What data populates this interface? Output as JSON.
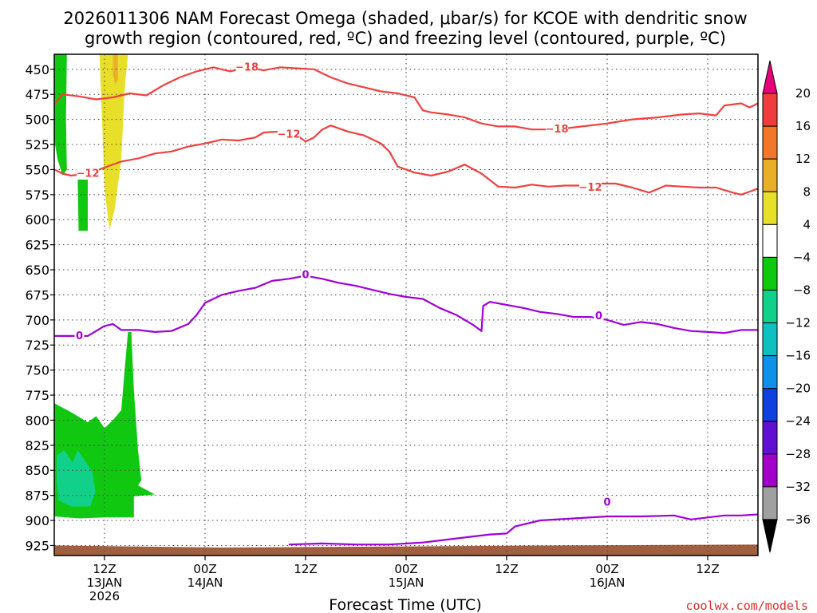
{
  "chart_data": {
    "type": "contour",
    "title_line1": "2026011306 NAM Forecast Omega (shaded, μbar/s) for KCOE with dendritic snow",
    "title_line2": "growth region (contoured, red, ºC) and freezing level (contoured, purple, ºC)",
    "xlabel": "Forecast Time (UTC)",
    "x_range_hours": [
      0,
      84
    ],
    "y_range_hpa": [
      435,
      935
    ],
    "y_ticks": [
      450,
      475,
      500,
      525,
      550,
      575,
      600,
      625,
      650,
      675,
      700,
      725,
      750,
      775,
      800,
      825,
      850,
      875,
      900,
      925
    ],
    "x_ticks": [
      {
        "hour": 6,
        "line1": "12Z",
        "line2": "13JAN",
        "line3": "2026"
      },
      {
        "hour": 18,
        "line1": "00Z",
        "line2": "14JAN",
        "line3": ""
      },
      {
        "hour": 30,
        "line1": "12Z",
        "line2": "",
        "line3": ""
      },
      {
        "hour": 42,
        "line1": "00Z",
        "line2": "15JAN",
        "line3": ""
      },
      {
        "hour": 54,
        "line1": "12Z",
        "line2": "",
        "line3": ""
      },
      {
        "hour": 66,
        "line1": "00Z",
        "line2": "16JAN",
        "line3": ""
      },
      {
        "hour": 78,
        "line1": "12Z",
        "line2": "",
        "line3": ""
      }
    ],
    "colorbar": {
      "labels": [
        "20",
        "16",
        "12",
        "8",
        "4",
        "−4",
        "−8",
        "−12",
        "−16",
        "−20",
        "−24",
        "−28",
        "−32",
        "−36"
      ],
      "colors": [
        "#e8007a",
        "#f03c3c",
        "#f07828",
        "#e8b028",
        "#e8e028",
        "#ffffff",
        "#10c810",
        "#10d08a",
        "#10c0c0",
        "#1090e8",
        "#1040e0",
        "#6010d0",
        "#a000c8",
        "#a0a0a0",
        "#000000"
      ]
    },
    "contours": [
      {
        "name": "minus-18-line",
        "color": "#f04040",
        "label": "−18",
        "label_at": [
          [
            23,
            448
          ],
          [
            60,
            510
          ]
        ],
        "points": [
          [
            0,
            485
          ],
          [
            1,
            475
          ],
          [
            3,
            477
          ],
          [
            5,
            480
          ],
          [
            7,
            478
          ],
          [
            9,
            474
          ],
          [
            11,
            476
          ],
          [
            13,
            466
          ],
          [
            15,
            458
          ],
          [
            17,
            452
          ],
          [
            19,
            448
          ],
          [
            21,
            452
          ],
          [
            23,
            448
          ],
          [
            25,
            451
          ],
          [
            27,
            448
          ],
          [
            29,
            449
          ],
          [
            31,
            450
          ],
          [
            33,
            458
          ],
          [
            35,
            464
          ],
          [
            37,
            468
          ],
          [
            39,
            472
          ],
          [
            41,
            474
          ],
          [
            43,
            478
          ],
          [
            44,
            491
          ],
          [
            45,
            493
          ],
          [
            47,
            495
          ],
          [
            49,
            498
          ],
          [
            51,
            504
          ],
          [
            53,
            507
          ],
          [
            55,
            507
          ],
          [
            57,
            510
          ],
          [
            60,
            510
          ],
          [
            63,
            507
          ],
          [
            66,
            504
          ],
          [
            69,
            500
          ],
          [
            72,
            498
          ],
          [
            75,
            495
          ],
          [
            77,
            494
          ],
          [
            79,
            496
          ],
          [
            80,
            486
          ],
          [
            82,
            484
          ],
          [
            83,
            488
          ],
          [
            84,
            484
          ]
        ]
      },
      {
        "name": "minus-12-line",
        "color": "#f04040",
        "label": "−12",
        "label_at": [
          [
            4,
            554
          ],
          [
            28,
            515
          ],
          [
            64,
            568
          ]
        ],
        "points": [
          [
            0,
            550
          ],
          [
            1,
            554
          ],
          [
            2,
            556
          ],
          [
            4,
            554
          ],
          [
            6,
            548
          ],
          [
            8,
            542
          ],
          [
            10,
            539
          ],
          [
            12,
            534
          ],
          [
            14,
            532
          ],
          [
            16,
            527
          ],
          [
            18,
            524
          ],
          [
            20,
            520
          ],
          [
            22,
            521
          ],
          [
            24,
            518
          ],
          [
            25,
            513
          ],
          [
            27,
            512
          ],
          [
            29,
            516
          ],
          [
            30,
            522
          ],
          [
            31,
            518
          ],
          [
            32,
            510
          ],
          [
            33,
            506
          ],
          [
            35,
            512
          ],
          [
            37,
            516
          ],
          [
            39,
            524
          ],
          [
            40,
            532
          ],
          [
            41,
            547
          ],
          [
            43,
            553
          ],
          [
            45,
            556
          ],
          [
            47,
            552
          ],
          [
            49,
            545
          ],
          [
            51,
            554
          ],
          [
            53,
            567
          ],
          [
            55,
            568
          ],
          [
            57,
            565
          ],
          [
            59,
            567
          ],
          [
            61,
            566
          ],
          [
            63,
            566
          ],
          [
            65,
            564
          ],
          [
            67,
            564
          ],
          [
            69,
            568
          ],
          [
            71,
            573
          ],
          [
            73,
            566
          ],
          [
            75,
            567
          ],
          [
            77,
            568
          ],
          [
            79,
            568
          ],
          [
            81,
            573
          ],
          [
            82,
            575
          ],
          [
            83,
            572
          ],
          [
            84,
            569
          ]
        ]
      },
      {
        "name": "zero-isotherm-line",
        "color": "#a000d8",
        "label": "0",
        "label_at": [
          [
            3,
            716
          ],
          [
            30,
            655
          ],
          [
            65,
            696
          ]
        ],
        "points": [
          [
            0,
            716
          ],
          [
            2,
            716
          ],
          [
            4,
            716
          ],
          [
            6,
            706
          ],
          [
            7,
            704
          ],
          [
            8,
            710
          ],
          [
            10,
            710
          ],
          [
            12,
            712
          ],
          [
            14,
            711
          ],
          [
            16,
            704
          ],
          [
            17,
            695
          ],
          [
            18,
            683
          ],
          [
            20,
            675
          ],
          [
            22,
            671
          ],
          [
            24,
            668
          ],
          [
            26,
            661
          ],
          [
            28,
            659
          ],
          [
            30,
            656
          ],
          [
            32,
            659
          ],
          [
            34,
            663
          ],
          [
            36,
            666
          ],
          [
            38,
            670
          ],
          [
            40,
            674
          ],
          [
            42,
            677
          ],
          [
            44,
            679
          ],
          [
            46,
            688
          ],
          [
            48,
            695
          ],
          [
            50,
            705
          ],
          [
            51,
            711
          ],
          [
            51.2,
            686
          ],
          [
            52,
            682
          ],
          [
            54,
            685
          ],
          [
            56,
            688
          ],
          [
            58,
            692
          ],
          [
            60,
            694
          ],
          [
            62,
            697
          ],
          [
            64,
            697
          ],
          [
            66,
            700
          ],
          [
            68,
            705
          ],
          [
            70,
            702
          ],
          [
            72,
            704
          ],
          [
            74,
            708
          ],
          [
            76,
            711
          ],
          [
            78,
            712
          ],
          [
            80,
            713
          ],
          [
            82,
            710
          ],
          [
            84,
            710
          ]
        ]
      },
      {
        "name": "lower-zero-isotherm-line",
        "color": "#a000d8",
        "label": "0",
        "label_at": [
          [
            66,
            882
          ]
        ],
        "points": [
          [
            28,
            924
          ],
          [
            32,
            923
          ],
          [
            36,
            924
          ],
          [
            40,
            924
          ],
          [
            44,
            922
          ],
          [
            48,
            918
          ],
          [
            52,
            914
          ],
          [
            54,
            913
          ],
          [
            55,
            906
          ],
          [
            58,
            900
          ],
          [
            62,
            898
          ],
          [
            66,
            896
          ],
          [
            70,
            896
          ],
          [
            74,
            895
          ],
          [
            76,
            899
          ],
          [
            78,
            897
          ],
          [
            80,
            895
          ],
          [
            82,
            895
          ],
          [
            84,
            894
          ]
        ]
      }
    ],
    "shaded_regions": [
      {
        "name": "green-column-left",
        "color": "#10c810",
        "points": [
          [
            0,
            435
          ],
          [
            1.5,
            435
          ],
          [
            1.4,
            500
          ],
          [
            1.5,
            550
          ],
          [
            1.0,
            556
          ],
          [
            0.4,
            540
          ],
          [
            0,
            520
          ]
        ]
      },
      {
        "name": "green-small-column",
        "color": "#10c810",
        "points": [
          [
            2.8,
            560
          ],
          [
            4.0,
            560
          ],
          [
            4.0,
            611
          ],
          [
            2.9,
            611
          ]
        ]
      },
      {
        "name": "yellow-column",
        "color": "#e8e028",
        "points": [
          [
            5.4,
            435
          ],
          [
            8.8,
            435
          ],
          [
            8.4,
            470
          ],
          [
            8.0,
            540
          ],
          [
            7.2,
            590
          ],
          [
            6.6,
            610
          ],
          [
            6.0,
            570
          ],
          [
            5.7,
            500
          ]
        ]
      },
      {
        "name": "orange-column",
        "color": "#e8b028",
        "points": [
          [
            7.0,
            435
          ],
          [
            7.6,
            435
          ],
          [
            7.6,
            460
          ],
          [
            7.3,
            465
          ],
          [
            7.0,
            455
          ]
        ]
      },
      {
        "name": "green-lower-region",
        "color": "#10c810",
        "points": [
          [
            0,
            783
          ],
          [
            2,
            792
          ],
          [
            4,
            802
          ],
          [
            5,
            796
          ],
          [
            6,
            808
          ],
          [
            7,
            800
          ],
          [
            8,
            790
          ],
          [
            8.5,
            740
          ],
          [
            8.8,
            712
          ],
          [
            9.2,
            712
          ],
          [
            9.5,
            770
          ],
          [
            10,
            830
          ],
          [
            10.4,
            860
          ],
          [
            10,
            865
          ],
          [
            12,
            874
          ],
          [
            9.5,
            876
          ],
          [
            9.5,
            897
          ],
          [
            6,
            897
          ],
          [
            3,
            898
          ],
          [
            0,
            896
          ]
        ]
      },
      {
        "name": "teal-lower-region",
        "color": "#10d08a",
        "points": [
          [
            0.3,
            835
          ],
          [
            1.2,
            830
          ],
          [
            2.2,
            842
          ],
          [
            2.8,
            830
          ],
          [
            4.6,
            852
          ],
          [
            4.9,
            872
          ],
          [
            4.3,
            886
          ],
          [
            2,
            886
          ],
          [
            0.5,
            880
          ],
          [
            0.3,
            860
          ]
        ]
      },
      {
        "name": "ground-strip",
        "color": "#a06040",
        "points": [
          [
            0,
            925
          ],
          [
            20,
            927
          ],
          [
            40,
            926
          ],
          [
            60,
            925
          ],
          [
            84,
            924
          ],
          [
            84,
            935
          ],
          [
            0,
            935
          ]
        ]
      }
    ]
  },
  "credit": "coolwx.com/models"
}
